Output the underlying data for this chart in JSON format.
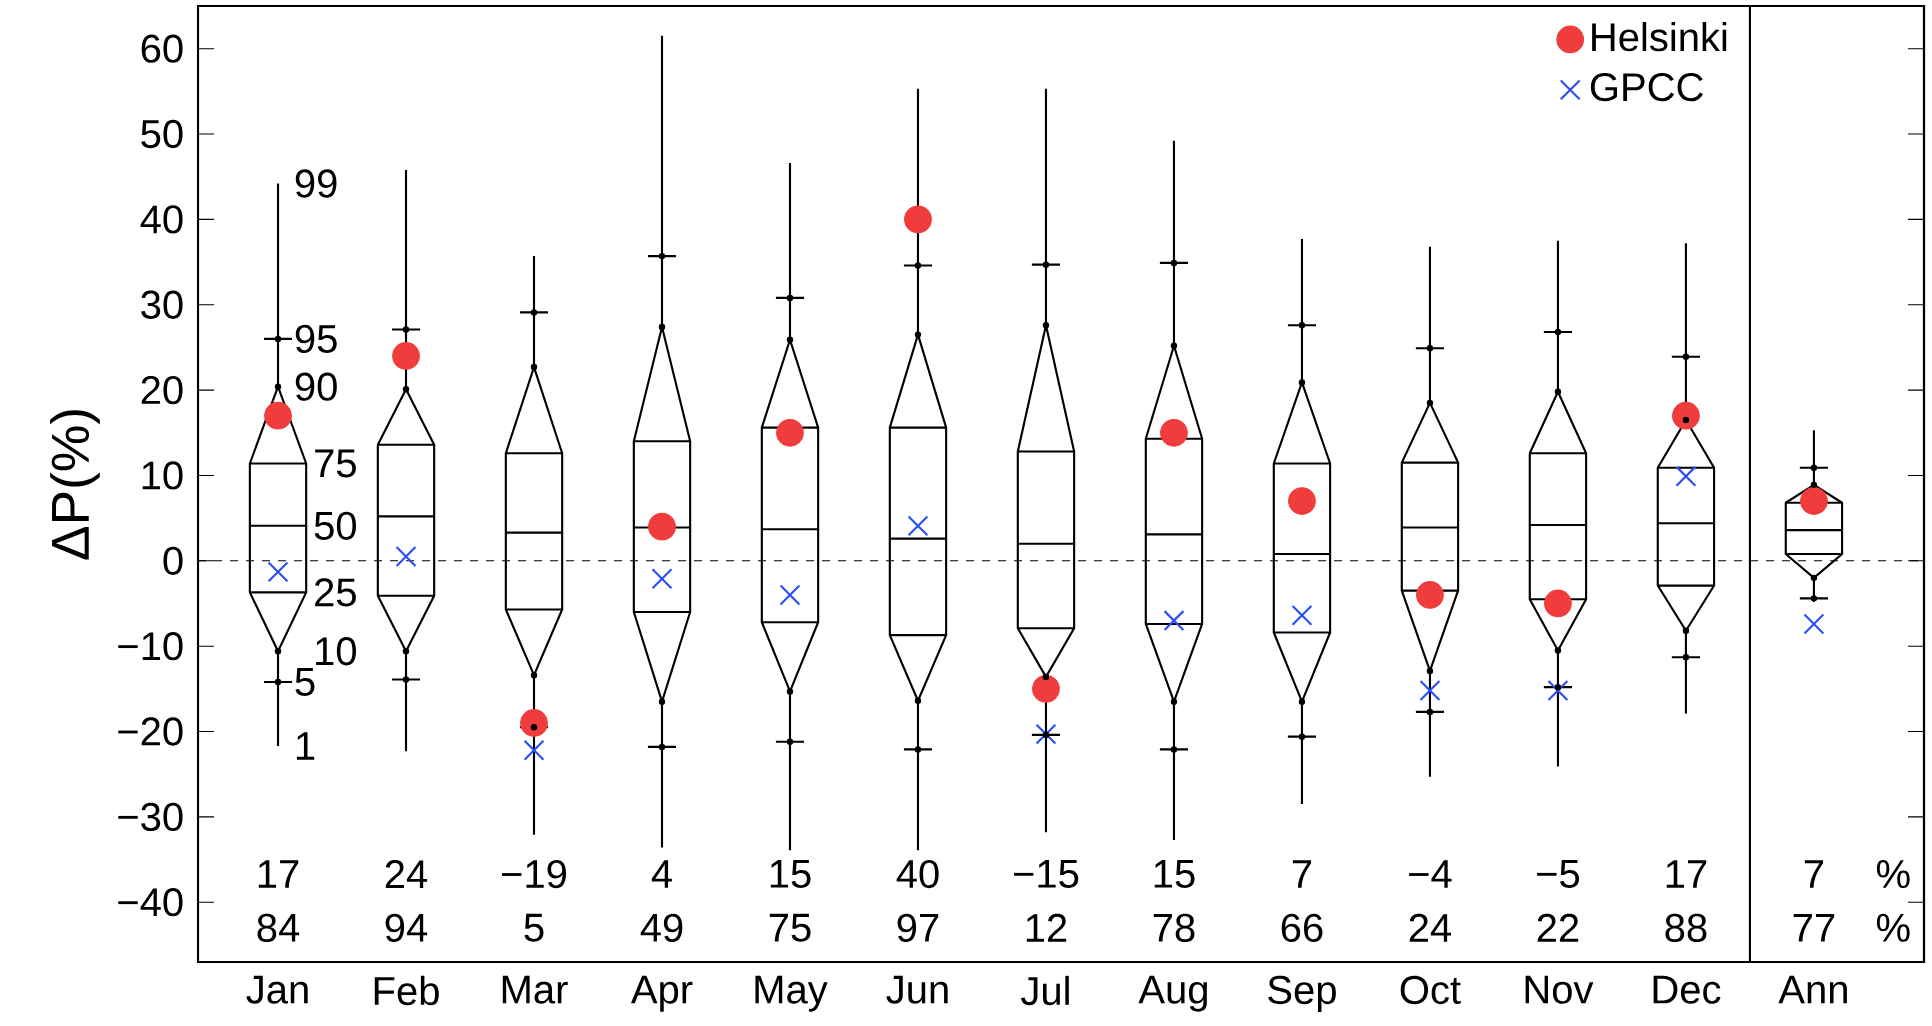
{
  "chart_data": {
    "type": "box",
    "ylabel": "ΔP(%)",
    "categories": [
      "Jan",
      "Feb",
      "Mar",
      "Apr",
      "May",
      "Jun",
      "Jul",
      "Aug",
      "Sep",
      "Oct",
      "Nov",
      "Dec",
      "Ann"
    ],
    "ylim": [
      -47,
      65
    ],
    "yticks": [
      {
        "value": -40,
        "label": "−40"
      },
      {
        "value": -30,
        "label": "−30"
      },
      {
        "value": -20,
        "label": "−20"
      },
      {
        "value": -10,
        "label": "−10"
      },
      0,
      10,
      20,
      30,
      40,
      50,
      60
    ],
    "legend": "top right",
    "series": [
      {
        "color": "#000000",
        "boxes": [
          {
            "low": -21.7,
            "q1": -3.7,
            "median": 4.1,
            "q3": 11.4,
            "high": 44.2
          },
          {
            "low": -22.3,
            "q1": -4.1,
            "median": 5.2,
            "q3": 13.6,
            "high": 45.8
          },
          {
            "low": -32.1,
            "q1": -5.7,
            "median": 3.3,
            "q3": 12.6,
            "high": 35.7
          },
          {
            "low": -33.6,
            "q1": -6.0,
            "median": 3.9,
            "q3": 14.0,
            "high": 61.5
          },
          {
            "low": -33.9,
            "q1": -7.2,
            "median": 3.7,
            "q3": 15.6,
            "high": 46.6
          },
          {
            "low": -33.9,
            "q1": -8.7,
            "median": 2.6,
            "q3": 15.6,
            "high": 55.3
          },
          {
            "low": -31.8,
            "q1": -7.9,
            "median": 2.0,
            "q3": 12.8,
            "high": 55.3
          },
          {
            "low": -32.7,
            "q1": -7.4,
            "median": 3.1,
            "q3": 14.3,
            "high": 49.2
          },
          {
            "low": -28.5,
            "q1": -8.4,
            "median": 0.8,
            "q3": 11.4,
            "high": 37.7
          },
          {
            "low": -25.3,
            "q1": -3.5,
            "median": 3.9,
            "q3": 11.5,
            "high": 36.8
          },
          {
            "low": -24.1,
            "q1": -4.5,
            "median": 4.2,
            "q3": 12.6,
            "high": 37.5
          },
          {
            "low": -17.9,
            "q1": -2.9,
            "median": 4.4,
            "q3": 10.9,
            "high": 37.2
          },
          {
            "low": -4.8,
            "q1": 0.8,
            "median": 3.6,
            "q3": 6.8,
            "high": 15.3
          }
        ]
      },
      {
        "type": "scatter",
        "color": "#000000",
        "values": [
          -10.6,
          -10.6,
          -13.4,
          -16.5,
          -15.3,
          -16.4,
          -13.6,
          -16.5,
          -16.5,
          -12.9,
          -10.5,
          -8.2,
          -2.0
        ]
      },
      {
        "type": "scatter",
        "color": "#000000",
        "values": [
          20.4,
          20.1,
          22.7,
          27.4,
          25.9,
          26.5,
          27.6,
          25.2,
          20.9,
          18.5,
          19.8,
          16.5,
          8.9
        ]
      },
      {
        "type": "scatter",
        "color": "#000000",
        "values": [
          -14.2,
          -13.9,
          -19.5,
          -21.8,
          -21.2,
          -22.1,
          -20.4,
          -22.1,
          -20.6,
          -17.7,
          -14.8,
          -11.3,
          -4.4
        ]
      },
      {
        "type": "scatter",
        "color": "#000000",
        "values": [
          26.0,
          27.1,
          29.1,
          35.7,
          30.8,
          34.6,
          34.7,
          34.9,
          27.6,
          24.9,
          26.8,
          23.9,
          10.9
        ]
      },
      {
        "type": "scatter",
        "name": "Helsinki",
        "marker": "circle",
        "color": "#f03c3c",
        "values": [
          17,
          24,
          -19,
          4,
          15,
          40,
          -15,
          15,
          7,
          -4,
          -5,
          17,
          7
        ]
      },
      {
        "type": "scatter",
        "name": "GPCC",
        "marker": "cross",
        "color": "#2b4ff0",
        "values": [
          -1.3,
          0.5,
          -22.2,
          -2.1,
          -4.0,
          4.1,
          -20.3,
          -7.0,
          -6.4,
          -15.2,
          -15.2,
          9.9,
          -7.4
        ]
      }
    ],
    "ref_lines": [
      {
        "axis": "y",
        "value": 0,
        "line_style": "dashed"
      }
    ],
    "annotations": [
      {
        "text": "99",
        "x": "Jan",
        "y": 44.2
      },
      {
        "text": "95",
        "x": "Jan",
        "y": 26.0
      },
      {
        "text": "90",
        "x": "Jan",
        "y": 20.4
      },
      {
        "text": "75",
        "x": "Jan",
        "y": 11.4
      },
      {
        "text": "50",
        "x": "Jan",
        "y": 4.1
      },
      {
        "text": "25",
        "x": "Jan",
        "y": -3.7
      },
      {
        "text": "10",
        "x": "Jan",
        "y": -10.6
      },
      {
        "text": "5",
        "x": "Jan",
        "y": -14.2
      },
      {
        "text": "1",
        "x": "Jan",
        "y": -21.7
      },
      "17",
      "24",
      "−19",
      "4",
      "15",
      "40",
      "−15",
      "15",
      "7",
      "−4",
      "−5",
      "17",
      "7",
      "84",
      "94",
      "5",
      "49",
      "75",
      "97",
      "12",
      "78",
      "66",
      "24",
      "22",
      "88",
      "77",
      "%",
      "%"
    ]
  }
}
